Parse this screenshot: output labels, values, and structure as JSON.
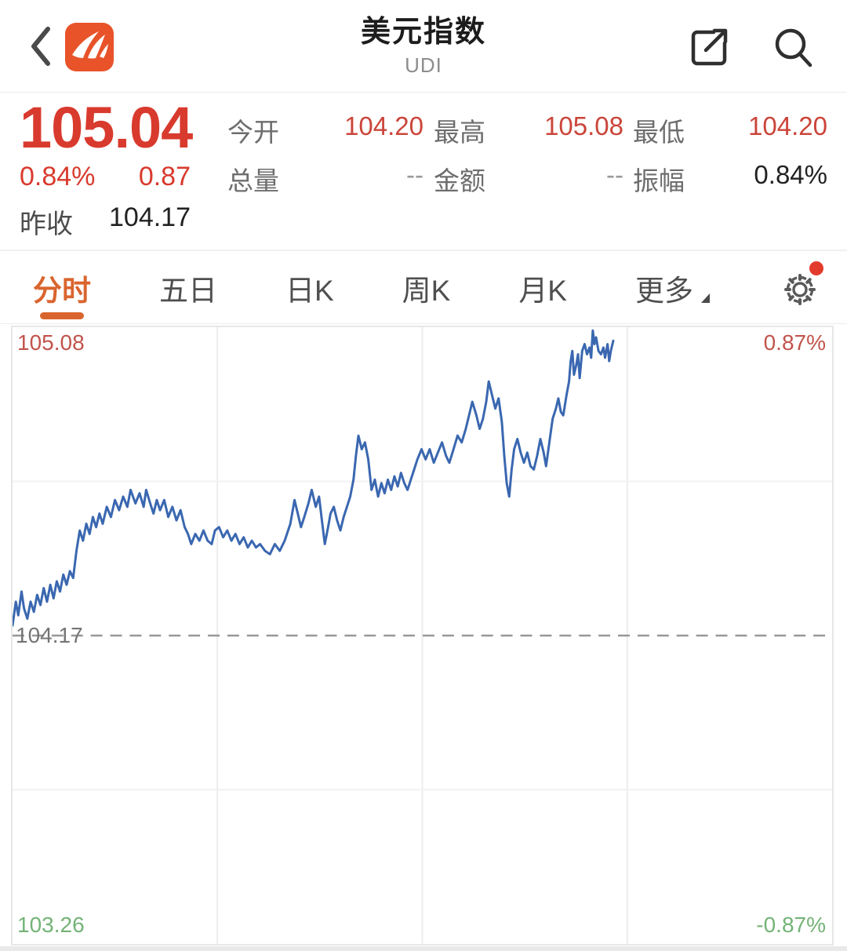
{
  "header": {
    "title": "美元指数",
    "subtitle": "UDI"
  },
  "quote": {
    "price": "105.04",
    "change_pct": "0.84%",
    "change_abs": "0.87",
    "prev_close_label": "昨收",
    "prev_close": "104.17",
    "stats": [
      {
        "label": "今开",
        "value": "104.20"
      },
      {
        "label": "最高",
        "value": "105.08"
      },
      {
        "label": "最低",
        "value": "104.20"
      },
      {
        "label": "总量",
        "value": "--"
      },
      {
        "label": "金额",
        "value": "--"
      },
      {
        "label": "振幅",
        "value": "0.84%"
      }
    ]
  },
  "tabs": [
    {
      "label": "分时",
      "active": true
    },
    {
      "label": "五日",
      "active": false
    },
    {
      "label": "日K",
      "active": false
    },
    {
      "label": "周K",
      "active": false
    },
    {
      "label": "月K",
      "active": false
    },
    {
      "label": "更多",
      "active": false,
      "has_caret": true
    }
  ],
  "settings": {
    "has_badge": true
  },
  "colors": {
    "accent-red": "#d93a2e",
    "muted-red": "#c1544c",
    "green": "#74b377",
    "line-blue": "#3a67b0",
    "tab-orange": "#d9652e",
    "logo-orange": "#e8532a"
  },
  "chart_data": {
    "type": "line",
    "title": "美元指数 分时",
    "ylim": [
      103.26,
      105.08
    ],
    "prev_close": 104.17,
    "grid": {
      "v_lines": [
        0.25,
        0.5,
        0.75
      ],
      "h_lines": [
        0.25,
        0.75
      ],
      "dashed_mid": 0.5
    },
    "labels": {
      "top_left": "105.08",
      "top_right": "0.87%",
      "mid_left": "104.17",
      "bottom_left": "103.26",
      "bottom_right": "-0.87%"
    },
    "series": [
      {
        "name": "price",
        "color": "#3a67b0",
        "points": [
          [
            0.0,
            104.2
          ],
          [
            0.004,
            104.27
          ],
          [
            0.007,
            104.23
          ],
          [
            0.011,
            104.3
          ],
          [
            0.014,
            104.25
          ],
          [
            0.018,
            104.22
          ],
          [
            0.022,
            104.27
          ],
          [
            0.026,
            104.24
          ],
          [
            0.03,
            104.29
          ],
          [
            0.034,
            104.26
          ],
          [
            0.038,
            104.31
          ],
          [
            0.042,
            104.27
          ],
          [
            0.046,
            104.32
          ],
          [
            0.05,
            104.28
          ],
          [
            0.054,
            104.33
          ],
          [
            0.058,
            104.3
          ],
          [
            0.062,
            104.35
          ],
          [
            0.066,
            104.32
          ],
          [
            0.07,
            104.36
          ],
          [
            0.074,
            104.34
          ],
          [
            0.078,
            104.42
          ],
          [
            0.082,
            104.48
          ],
          [
            0.086,
            104.45
          ],
          [
            0.09,
            104.5
          ],
          [
            0.094,
            104.47
          ],
          [
            0.098,
            104.52
          ],
          [
            0.102,
            104.49
          ],
          [
            0.106,
            104.53
          ],
          [
            0.11,
            104.5
          ],
          [
            0.115,
            104.55
          ],
          [
            0.12,
            104.52
          ],
          [
            0.125,
            104.57
          ],
          [
            0.13,
            104.54
          ],
          [
            0.135,
            104.58
          ],
          [
            0.14,
            104.55
          ],
          [
            0.144,
            104.6
          ],
          [
            0.15,
            104.56
          ],
          [
            0.155,
            104.59
          ],
          [
            0.16,
            104.55
          ],
          [
            0.163,
            104.6
          ],
          [
            0.168,
            104.56
          ],
          [
            0.172,
            104.53
          ],
          [
            0.176,
            104.57
          ],
          [
            0.18,
            104.54
          ],
          [
            0.185,
            104.57
          ],
          [
            0.19,
            104.52
          ],
          [
            0.195,
            104.55
          ],
          [
            0.2,
            104.51
          ],
          [
            0.205,
            104.54
          ],
          [
            0.21,
            104.49
          ],
          [
            0.214,
            104.47
          ],
          [
            0.218,
            104.44
          ],
          [
            0.223,
            104.47
          ],
          [
            0.228,
            104.45
          ],
          [
            0.233,
            104.48
          ],
          [
            0.238,
            104.45
          ],
          [
            0.243,
            104.44
          ],
          [
            0.247,
            104.48
          ],
          [
            0.252,
            104.49
          ],
          [
            0.257,
            104.46
          ],
          [
            0.262,
            104.48
          ],
          [
            0.267,
            104.45
          ],
          [
            0.272,
            104.47
          ],
          [
            0.277,
            104.44
          ],
          [
            0.282,
            104.46
          ],
          [
            0.287,
            104.43
          ],
          [
            0.292,
            104.45
          ],
          [
            0.297,
            104.43
          ],
          [
            0.302,
            104.44
          ],
          [
            0.308,
            104.42
          ],
          [
            0.314,
            104.41
          ],
          [
            0.32,
            104.44
          ],
          [
            0.326,
            104.42
          ],
          [
            0.332,
            104.45
          ],
          [
            0.339,
            104.5
          ],
          [
            0.344,
            104.57
          ],
          [
            0.348,
            104.53
          ],
          [
            0.352,
            104.49
          ],
          [
            0.356,
            104.52
          ],
          [
            0.361,
            104.56
          ],
          [
            0.365,
            104.6
          ],
          [
            0.37,
            104.55
          ],
          [
            0.374,
            104.58
          ],
          [
            0.378,
            104.5
          ],
          [
            0.381,
            104.44
          ],
          [
            0.385,
            104.49
          ],
          [
            0.388,
            104.53
          ],
          [
            0.392,
            104.55
          ],
          [
            0.396,
            104.51
          ],
          [
            0.4,
            104.48
          ],
          [
            0.404,
            104.52
          ],
          [
            0.408,
            104.55
          ],
          [
            0.412,
            104.58
          ],
          [
            0.416,
            104.63
          ],
          [
            0.419,
            104.7
          ],
          [
            0.422,
            104.76
          ],
          [
            0.426,
            104.72
          ],
          [
            0.43,
            104.74
          ],
          [
            0.434,
            104.69
          ],
          [
            0.438,
            104.6
          ],
          [
            0.442,
            104.63
          ],
          [
            0.446,
            104.58
          ],
          [
            0.45,
            104.62
          ],
          [
            0.454,
            104.59
          ],
          [
            0.458,
            104.63
          ],
          [
            0.462,
            104.6
          ],
          [
            0.466,
            104.64
          ],
          [
            0.47,
            104.61
          ],
          [
            0.474,
            104.65
          ],
          [
            0.478,
            104.62
          ],
          [
            0.482,
            104.6
          ],
          [
            0.486,
            104.63
          ],
          [
            0.49,
            104.66
          ],
          [
            0.494,
            104.69
          ],
          [
            0.499,
            104.72
          ],
          [
            0.504,
            104.69
          ],
          [
            0.509,
            104.72
          ],
          [
            0.514,
            104.68
          ],
          [
            0.519,
            104.71
          ],
          [
            0.524,
            104.74
          ],
          [
            0.529,
            104.7
          ],
          [
            0.533,
            104.68
          ],
          [
            0.538,
            104.72
          ],
          [
            0.543,
            104.76
          ],
          [
            0.548,
            104.74
          ],
          [
            0.553,
            104.78
          ],
          [
            0.557,
            104.82
          ],
          [
            0.561,
            104.86
          ],
          [
            0.566,
            104.82
          ],
          [
            0.57,
            104.78
          ],
          [
            0.574,
            104.81
          ],
          [
            0.578,
            104.86
          ],
          [
            0.581,
            104.92
          ],
          [
            0.585,
            104.88
          ],
          [
            0.589,
            104.84
          ],
          [
            0.593,
            104.87
          ],
          [
            0.597,
            104.8
          ],
          [
            0.6,
            104.7
          ],
          [
            0.603,
            104.62
          ],
          [
            0.606,
            104.58
          ],
          [
            0.609,
            104.66
          ],
          [
            0.612,
            104.72
          ],
          [
            0.616,
            104.75
          ],
          [
            0.62,
            104.71
          ],
          [
            0.624,
            104.68
          ],
          [
            0.628,
            104.71
          ],
          [
            0.632,
            104.67
          ],
          [
            0.636,
            104.66
          ],
          [
            0.64,
            104.7
          ],
          [
            0.644,
            104.75
          ],
          [
            0.648,
            104.71
          ],
          [
            0.651,
            104.67
          ],
          [
            0.655,
            104.74
          ],
          [
            0.659,
            104.81
          ],
          [
            0.663,
            104.84
          ],
          [
            0.666,
            104.87
          ],
          [
            0.669,
            104.83
          ],
          [
            0.672,
            104.82
          ],
          [
            0.676,
            104.88
          ],
          [
            0.679,
            104.92
          ],
          [
            0.681,
            104.98
          ],
          [
            0.683,
            105.01
          ],
          [
            0.685,
            104.94
          ],
          [
            0.688,
            104.97
          ],
          [
            0.69,
            105.0
          ],
          [
            0.692,
            104.93
          ],
          [
            0.695,
            105.01
          ],
          [
            0.698,
            105.03
          ],
          [
            0.701,
            105.0
          ],
          [
            0.704,
            105.02
          ],
          [
            0.706,
            104.99
          ],
          [
            0.708,
            105.07
          ],
          [
            0.71,
            105.03
          ],
          [
            0.712,
            105.05
          ],
          [
            0.715,
            105.01
          ],
          [
            0.718,
            105.0
          ],
          [
            0.721,
            105.02
          ],
          [
            0.723,
            104.99
          ],
          [
            0.726,
            105.03
          ],
          [
            0.728,
            104.98
          ],
          [
            0.73,
            105.01
          ],
          [
            0.733,
            105.04
          ]
        ]
      }
    ]
  }
}
